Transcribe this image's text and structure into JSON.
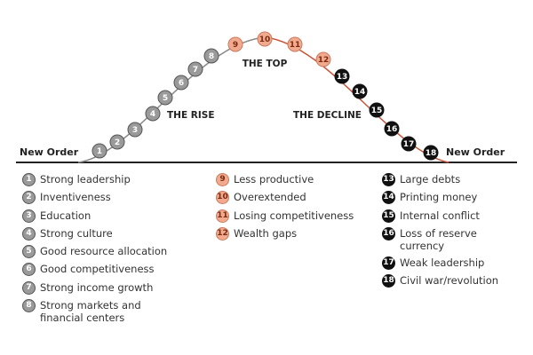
{
  "labels": {
    "new_order_left": "New Order",
    "new_order_right": "New Order",
    "the_rise": "THE RISE",
    "the_top": "THE TOP",
    "the_decline": "THE DECLINE"
  },
  "columns": [
    {
      "items": [
        {
          "number": 1,
          "text": "Strong leadership"
        },
        {
          "number": 2,
          "text": "Inventiveness"
        },
        {
          "number": 3,
          "text": "Education"
        },
        {
          "number": 4,
          "text": "Strong culture"
        },
        {
          "number": 5,
          "text": "Good resource allocation"
        },
        {
          "number": 6,
          "text": "Good competitiveness"
        },
        {
          "number": 7,
          "text": "Strong income growth"
        },
        {
          "number": 8,
          "text": "Strong markets and financial centers"
        }
      ]
    },
    {
      "items": [
        {
          "number": 9,
          "text": "Less productive"
        },
        {
          "number": 10,
          "text": "Overextended"
        },
        {
          "number": 11,
          "text": "Losing competitiveness"
        },
        {
          "number": 12,
          "text": "Wealth gaps"
        }
      ]
    },
    {
      "items": [
        {
          "number": 13,
          "text": "Large debts"
        },
        {
          "number": 14,
          "text": "Printing money"
        },
        {
          "number": 15,
          "text": "Internal conflict"
        },
        {
          "number": 16,
          "text": "Loss of reserve currency"
        },
        {
          "number": 17,
          "text": "Weak leadership"
        },
        {
          "number": 18,
          "text": "Civil war/revolution"
        }
      ]
    }
  ]
}
